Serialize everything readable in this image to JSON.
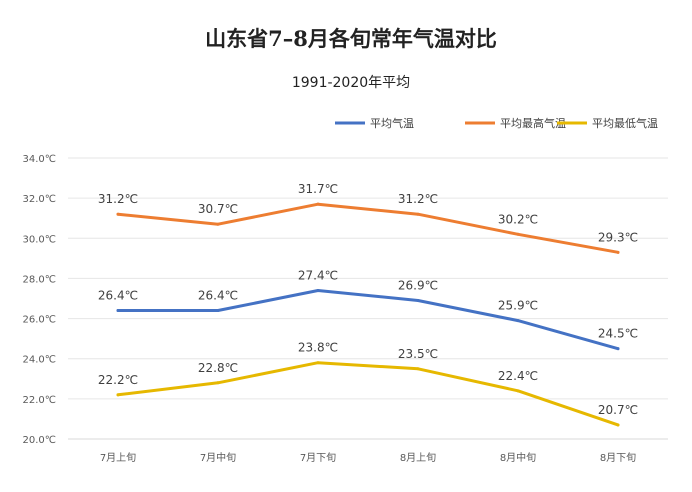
{
  "chart_data": {
    "type": "line",
    "title": "山东省7–8月各旬常年气温对比",
    "subtitle": "1991-2020年平均",
    "categories": [
      "7月上旬",
      "7月中旬",
      "7月下旬",
      "8月上旬",
      "8月中旬",
      "8月下旬"
    ],
    "y_ticks": [
      "20.0℃",
      "22.0℃",
      "24.0℃",
      "26.0℃",
      "28.0℃",
      "30.0℃",
      "32.0℃",
      "34.0℃"
    ],
    "ylim": [
      20,
      34
    ],
    "grid": true,
    "legend_position": "top-right",
    "series": [
      {
        "name": "平均气温",
        "color": "#4472c4",
        "values": [
          26.4,
          26.4,
          27.4,
          26.9,
          25.9,
          24.5
        ],
        "labels": [
          "26.4℃",
          "26.4℃",
          "27.4℃",
          "26.9℃",
          "25.9℃",
          "24.5℃"
        ]
      },
      {
        "name": "平均最高气温",
        "color": "#ed7d31",
        "values": [
          31.2,
          30.7,
          31.7,
          31.2,
          30.2,
          29.3
        ],
        "labels": [
          "31.2℃",
          "30.7℃",
          "31.7℃",
          "31.2℃",
          "30.2℃",
          "29.3℃"
        ]
      },
      {
        "name": "平均最低气温",
        "color": "#e6b800",
        "values": [
          22.2,
          22.8,
          23.8,
          23.5,
          22.4,
          20.7
        ],
        "labels": [
          "22.2℃",
          "22.8℃",
          "23.8℃",
          "23.5℃",
          "22.4℃",
          "20.7℃"
        ]
      }
    ]
  }
}
